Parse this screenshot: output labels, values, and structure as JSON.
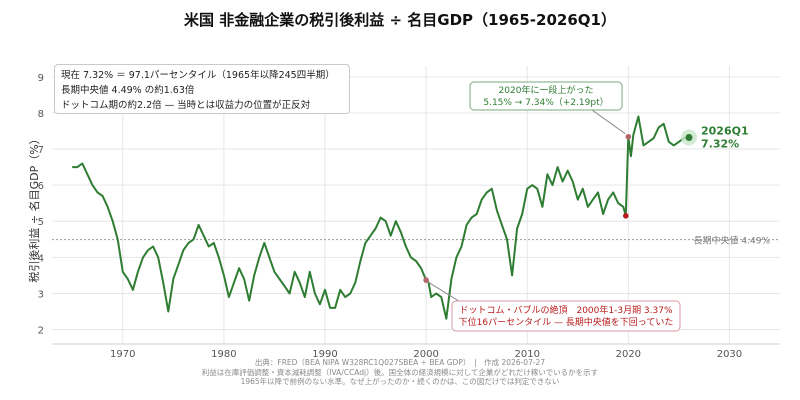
{
  "colors": {
    "line": "#2e7d32",
    "grid": "#e6e6e6",
    "median": "#9a9a9a",
    "dotcom": "#b71c1c",
    "marker": "#b5666a",
    "callout_border_green": "#7aa97d",
    "callout_border_red": "#d99aa0"
  },
  "chart_data": {
    "type": "line",
    "title": "米国 非金融企業の税引後利益 ÷ 名目GDP（1965-2026Q1）",
    "ylabel": "税引後利益 ÷ 名目GDP（%）",
    "xlabel": "",
    "xlim": [
      1963,
      2035
    ],
    "ylim": [
      1.6,
      9.3
    ],
    "xticks": [
      1970,
      1980,
      1990,
      2000,
      2010,
      2020,
      2030
    ],
    "yticks": [
      2,
      3,
      4,
      5,
      6,
      7,
      8,
      9
    ],
    "grid": true,
    "series": [
      {
        "x": [
          1965.0,
          1965.5,
          1966.0,
          1966.5,
          1967.0,
          1967.5,
          1968.0,
          1968.5,
          1969.0,
          1969.5,
          1970.0,
          1970.5,
          1971.0,
          1971.5,
          1972.0,
          1972.5,
          1973.0,
          1973.5,
          1974.0,
          1974.5,
          1975.0,
          1975.5,
          1976.0,
          1976.5,
          1977.0,
          1977.5,
          1978.0,
          1978.5,
          1979.0,
          1979.5,
          1980.0,
          1980.5,
          1981.0,
          1981.5,
          1982.0,
          1982.5,
          1983.0,
          1983.5,
          1984.0,
          1984.5,
          1985.0,
          1985.5,
          1986.0,
          1986.5,
          1987.0,
          1987.5,
          1988.0,
          1988.5,
          1989.0,
          1989.5,
          1990.0,
          1990.5,
          1991.0,
          1991.5,
          1992.0,
          1992.5,
          1993.0,
          1993.5,
          1994.0,
          1994.5,
          1995.0,
          1995.5,
          1996.0,
          1996.5,
          1997.0,
          1997.5,
          1998.0,
          1998.5,
          1999.0,
          1999.5,
          2000.0,
          2000.25,
          2000.5,
          2001.0,
          2001.5,
          2002.0,
          2002.5,
          2003.0,
          2003.5,
          2004.0,
          2004.5,
          2005.0,
          2005.5,
          2006.0,
          2006.5,
          2007.0,
          2007.5,
          2008.0,
          2008.5,
          2009.0,
          2009.5,
          2010.0,
          2010.5,
          2011.0,
          2011.5,
          2012.0,
          2012.5,
          2013.0,
          2013.5,
          2014.0,
          2014.5,
          2015.0,
          2015.5,
          2016.0,
          2016.5,
          2017.0,
          2017.5,
          2018.0,
          2018.5,
          2019.0,
          2019.5,
          2019.75,
          2020.0,
          2020.25,
          2020.5,
          2021.0,
          2021.5,
          2022.0,
          2022.5,
          2023.0,
          2023.5,
          2024.0,
          2024.5,
          2025.0,
          2025.5,
          2026.0
        ],
        "y": [
          6.5,
          6.5,
          6.6,
          6.3,
          6.0,
          5.8,
          5.7,
          5.4,
          5.0,
          4.5,
          3.6,
          3.4,
          3.1,
          3.6,
          4.0,
          4.2,
          4.3,
          4.0,
          3.3,
          2.5,
          3.4,
          3.8,
          4.2,
          4.4,
          4.5,
          4.9,
          4.6,
          4.3,
          4.4,
          4.0,
          3.5,
          2.9,
          3.3,
          3.7,
          3.4,
          2.8,
          3.5,
          4.0,
          4.4,
          4.0,
          3.6,
          3.4,
          3.2,
          3.0,
          3.6,
          3.3,
          2.9,
          3.6,
          3.0,
          2.7,
          3.1,
          2.6,
          2.6,
          3.1,
          2.9,
          3.0,
          3.3,
          3.9,
          4.4,
          4.6,
          4.8,
          5.1,
          5.0,
          4.6,
          5.0,
          4.7,
          4.3,
          4.0,
          3.9,
          3.7,
          3.37,
          3.3,
          2.9,
          3.0,
          2.9,
          2.3,
          3.4,
          4.0,
          4.3,
          4.9,
          5.1,
          5.2,
          5.6,
          5.8,
          5.9,
          5.3,
          4.9,
          4.5,
          3.5,
          4.8,
          5.2,
          5.9,
          6.0,
          5.9,
          5.4,
          6.3,
          6.0,
          6.5,
          6.1,
          6.4,
          6.1,
          5.6,
          5.9,
          5.4,
          5.6,
          5.8,
          5.2,
          5.6,
          5.8,
          5.5,
          5.4,
          5.15,
          7.34,
          6.8,
          7.4,
          7.9,
          7.1,
          7.2,
          7.3,
          7.6,
          7.7,
          7.2,
          7.1,
          7.2,
          7.3,
          7.32
        ]
      }
    ],
    "median": {
      "value": 4.49,
      "label": "長期中央値 4.49%"
    },
    "last_point": {
      "x": 2026.0,
      "y": 7.32,
      "label_line1": "2026Q1",
      "label_line2": "7.32%"
    },
    "annotations": [
      {
        "id": "covid-jump",
        "x": 2019.75,
        "y": 5.15,
        "x2": 2020.0,
        "y2": 7.34,
        "line1": "2020年に一段上がった",
        "line2": "5.15% → 7.34%（+2.19pt）"
      },
      {
        "id": "dotcom",
        "x": 2000.0,
        "y": 3.37,
        "line1": "ドットコム・バブルの絶頂　2000年1-3月期 3.37%",
        "line2": "下位16パーセンタイル — 長期中央値を下回っていた"
      }
    ]
  },
  "info_box": {
    "line1": "現在 7.32% ＝ 97.1パーセンタイル（1965年以降245四半期）",
    "line2": "長期中央値 4.49% の約1.63倍",
    "line3": "ドットコム期の約2.2倍 — 当時とは収益力の位置が正反対"
  },
  "footer": {
    "line1": "出典：FRED（BEA NIPA W328RC1Q027SBEA ÷ BEA GDP）　|　作成 2026-07-27",
    "line2": "利益は在庫評価調整・資本減耗調整（IVA/CCAdj）後。国全体の経済規模に対して企業がどれだけ稼いでいるかを示す",
    "line3": "1965年以降で前例のない水準。なぜ上がったのか・続くのかは、この図だけでは判定できない"
  }
}
